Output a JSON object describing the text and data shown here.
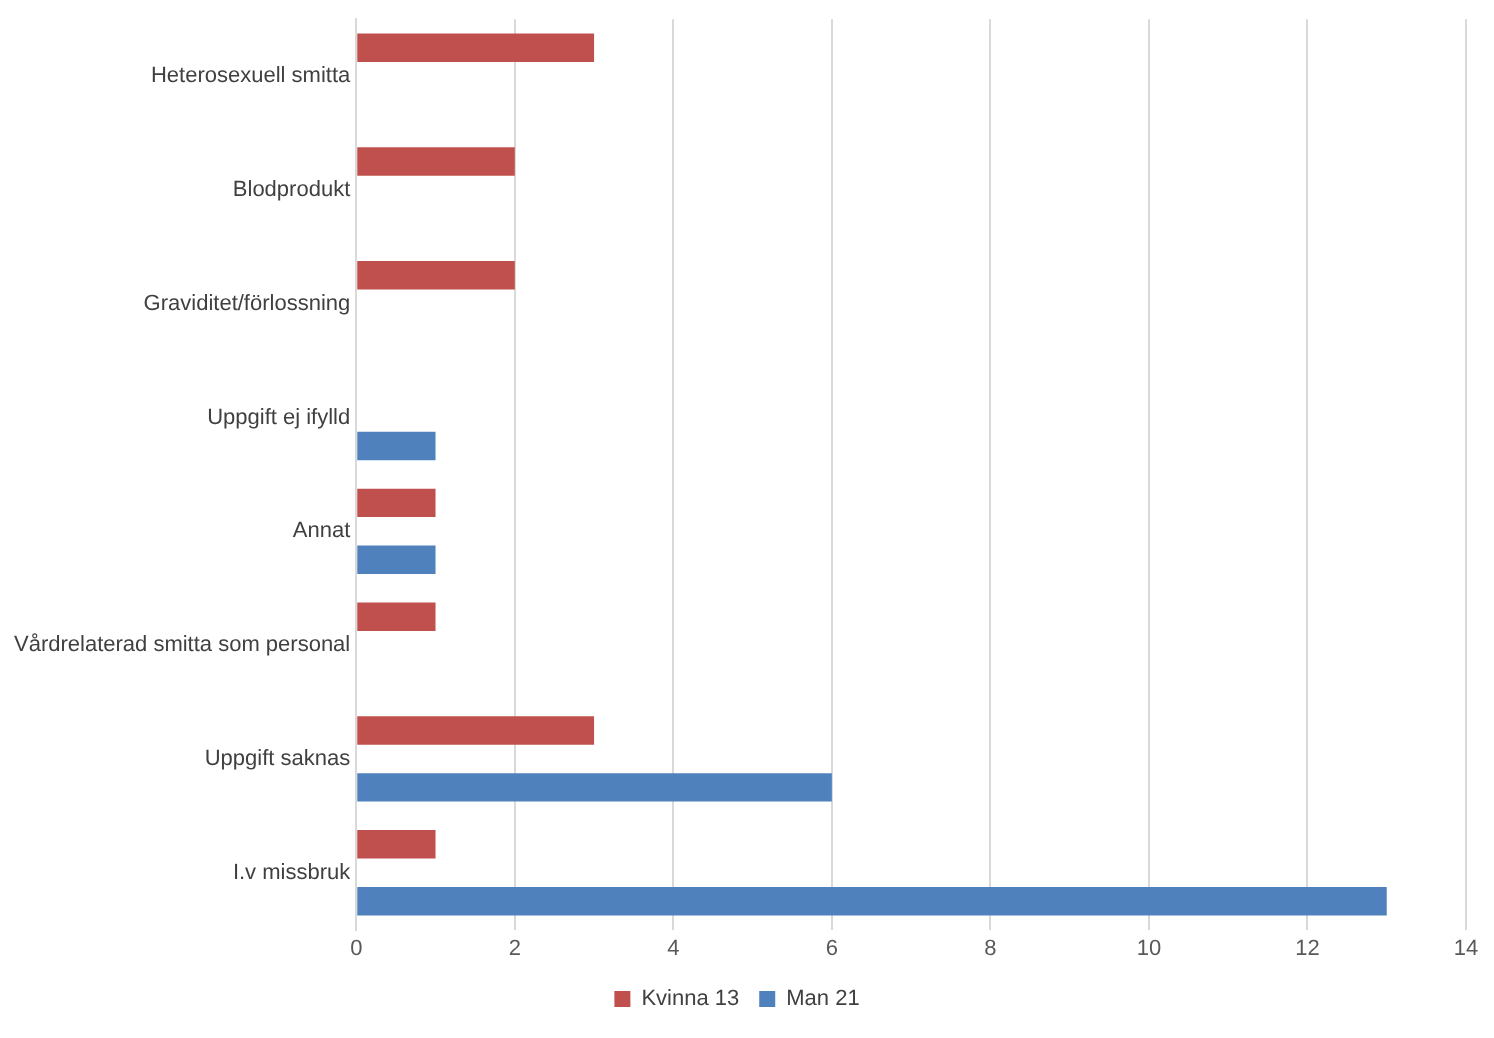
{
  "chart_data": {
    "type": "bar",
    "orientation": "horizontal",
    "categories": [
      "Heterosexuell smitta",
      "Blodprodukt",
      "Graviditet/förlossning",
      "Uppgift ej ifylld",
      "Annat",
      "Vårdrelaterad smitta som personal",
      "Uppgift saknas",
      "I.v missbruk"
    ],
    "series": [
      {
        "name": "Kvinna 13",
        "color": "#c0504d",
        "values": [
          3,
          2,
          2,
          null,
          1,
          1,
          3,
          1
        ]
      },
      {
        "name": "Man 21",
        "color": "#4f81bd",
        "values": [
          null,
          null,
          null,
          1,
          1,
          null,
          6,
          13
        ]
      }
    ],
    "xlim": [
      0,
      14
    ],
    "xticks": [
      0,
      2,
      4,
      6,
      8,
      10,
      12,
      14
    ],
    "grid": "x",
    "legend": "bottom"
  }
}
